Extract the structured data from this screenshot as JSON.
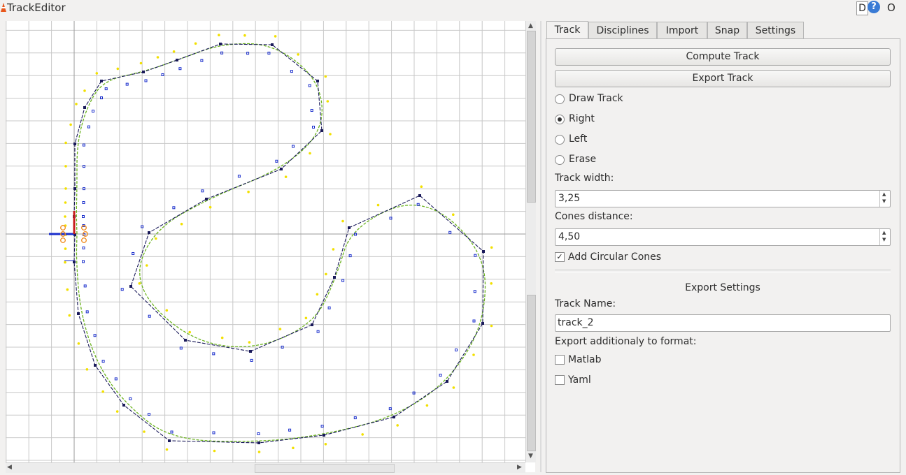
{
  "window": {
    "title": "TrackEditor",
    "titlebar_right_d": "D",
    "titlebar_right_help": "?",
    "titlebar_right_o": "O"
  },
  "tabs": [
    {
      "label": "Track",
      "active": true
    },
    {
      "label": "Disciplines",
      "active": false
    },
    {
      "label": "Import",
      "active": false
    },
    {
      "label": "Snap",
      "active": false
    },
    {
      "label": "Settings",
      "active": false
    }
  ],
  "track_tab": {
    "compute_button": "Compute Track",
    "export_button": "Export Track",
    "modes": [
      {
        "label": "Draw Track",
        "selected": false
      },
      {
        "label": "Right",
        "selected": true
      },
      {
        "label": "Left",
        "selected": false
      },
      {
        "label": "Erase",
        "selected": false
      }
    ],
    "track_width_label": "Track width:",
    "track_width_value": "3,25",
    "cones_distance_label": "Cones distance:",
    "cones_distance_value": "4,50",
    "circular_cones_label": "Add Circular Cones",
    "circular_cones_checked": true,
    "export_settings_title": "Export Settings",
    "track_name_label": "Track Name:",
    "track_name_value": "track_2",
    "export_format_label": "Export additionaly to format:",
    "formats": [
      {
        "label": "Matlab",
        "checked": false
      },
      {
        "label": "Yaml",
        "checked": false
      }
    ]
  },
  "colors": {
    "grid": "#c8c8c8",
    "centerline": "#1a1a5a",
    "smooth_track": "#6bb31f",
    "right_cones": "#1a2ecc",
    "left_cones": "#f2e000",
    "origin_x_axis": "#1a2ecc",
    "origin_y_axis": "#c81e1e",
    "start_cones": "#f08a1c"
  },
  "track_path": {
    "closed": true,
    "segments": 32
  }
}
